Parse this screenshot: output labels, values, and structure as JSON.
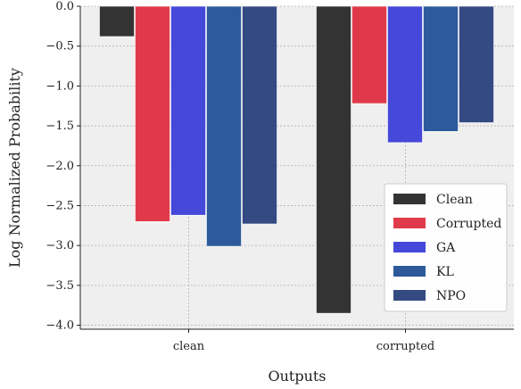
{
  "chart_data": {
    "type": "bar",
    "title": "",
    "xlabel": "Outputs",
    "ylabel": "Log Normalized Probability",
    "categories": [
      "clean",
      "corrupted"
    ],
    "ylim": [
      -4.05,
      0.0
    ],
    "yticks": [
      0.0,
      -0.5,
      -1.0,
      -1.5,
      -2.0,
      -2.5,
      -3.0,
      -3.5,
      -4.0
    ],
    "ytick_labels": [
      "0.0",
      "−0.5",
      "−1.0",
      "−1.5",
      "−2.0",
      "−2.5",
      "−3.0",
      "−3.5",
      "−4.0"
    ],
    "grid": true,
    "legend_position": "bottom-right",
    "series": [
      {
        "name": "Clean",
        "color": "#333333",
        "values": [
          -0.38,
          -3.85
        ]
      },
      {
        "name": "Corrupted",
        "color": "#e03a4a",
        "values": [
          -2.7,
          -1.22
        ]
      },
      {
        "name": "GA",
        "color": "#4548d8",
        "values": [
          -2.62,
          -1.71
        ]
      },
      {
        "name": "KL",
        "color": "#2c5a9a",
        "values": [
          -3.01,
          -1.57
        ]
      },
      {
        "name": "NPO",
        "color": "#344a82",
        "values": [
          -2.73,
          -1.46
        ]
      }
    ]
  }
}
